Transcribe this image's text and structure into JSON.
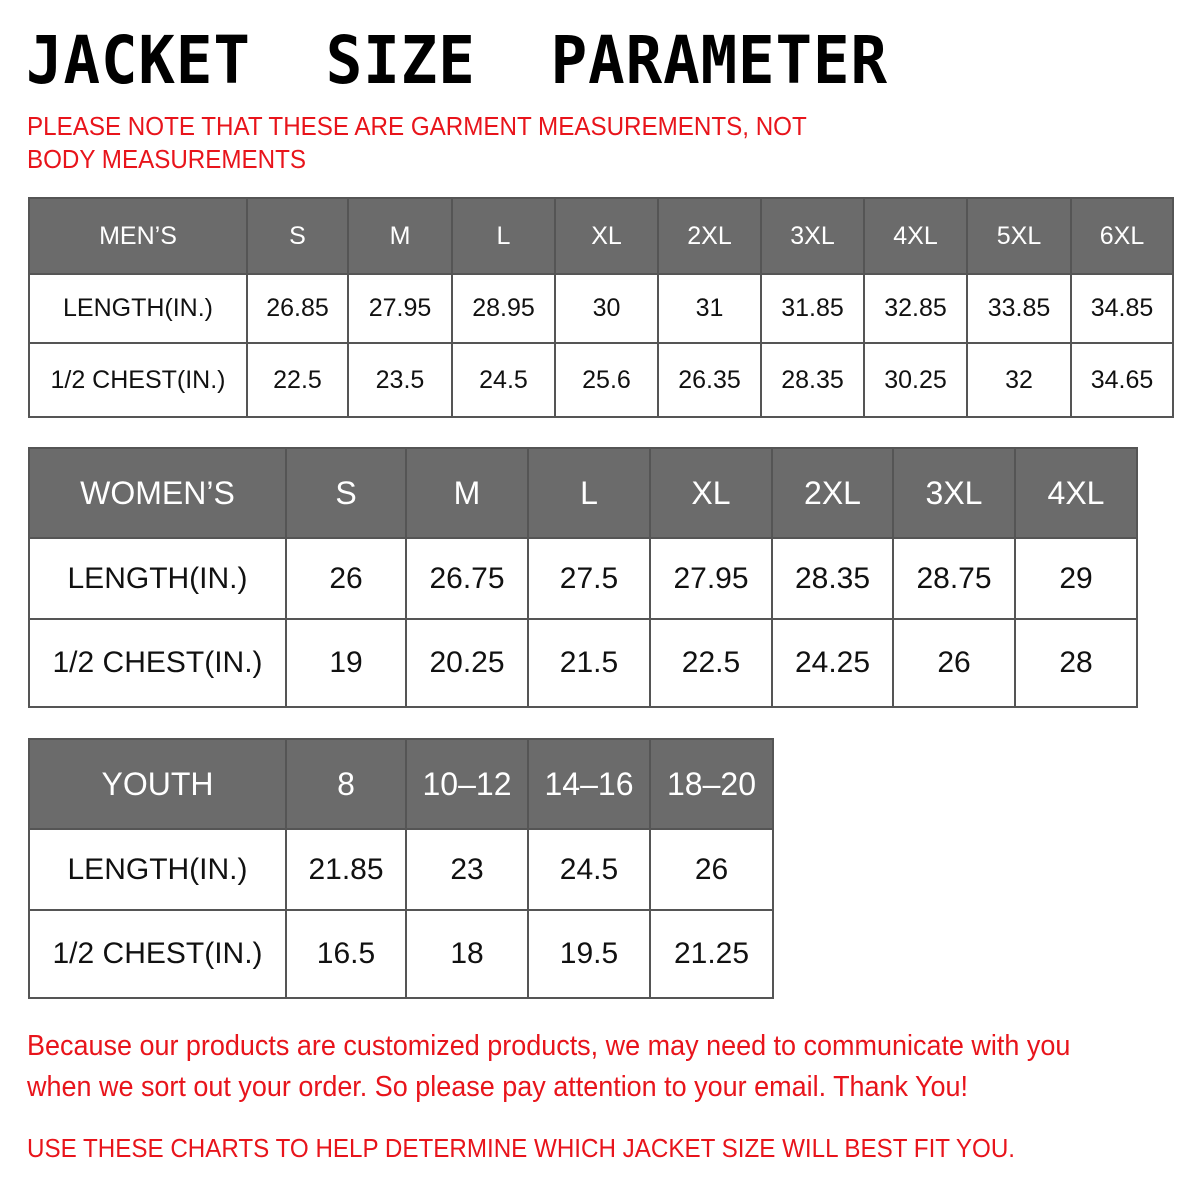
{
  "title": "JACKET  SIZE  PARAMETER",
  "note": "PLEASE NOTE THAT THESE ARE GARMENT MEASUREMENTS, NOT BODY MEASUREMENTS",
  "colors": {
    "header_bg": "#6b6b6b",
    "accent_red": "#e8141b"
  },
  "mens": {
    "header": [
      "MEN’S",
      "S",
      "M",
      "L",
      "XL",
      "2XL",
      "3XL",
      "4XL",
      "5XL",
      "6XL"
    ],
    "rows": [
      [
        "LENGTH(IN.)",
        "26.85",
        "27.95",
        "28.95",
        "30",
        "31",
        "31.85",
        "32.85",
        "33.85",
        "34.85"
      ],
      [
        "1/2 CHEST(IN.)",
        "22.5",
        "23.5",
        "24.5",
        "25.6",
        "26.35",
        "28.35",
        "30.25",
        "32",
        "34.65"
      ]
    ]
  },
  "womens": {
    "header": [
      "WOMEN’S",
      "S",
      "M",
      "L",
      "XL",
      "2XL",
      "3XL",
      "4XL"
    ],
    "rows": [
      [
        "LENGTH(IN.)",
        "26",
        "26.75",
        "27.5",
        "27.95",
        "28.35",
        "28.75",
        "29"
      ],
      [
        "1/2 CHEST(IN.)",
        "19",
        "20.25",
        "21.5",
        "22.5",
        "24.25",
        "26",
        "28"
      ]
    ]
  },
  "youth": {
    "header": [
      "YOUTH",
      "8",
      "10–12",
      "14–16",
      "18–20"
    ],
    "rows": [
      [
        "LENGTH(IN.)",
        "21.85",
        "23",
        "24.5",
        "26"
      ],
      [
        "1/2 CHEST(IN.)",
        "16.5",
        "18",
        "19.5",
        "21.25"
      ]
    ]
  },
  "footer": {
    "line1": "Because our products are customized products, we may need to communicate with you",
    "line2": "when we sort out your order. So please pay attention to your email. Thank You!",
    "line3": "USE THESE CHARTS TO HELP DETERMINE WHICH JACKET SIZE WILL BEST FIT YOU."
  }
}
